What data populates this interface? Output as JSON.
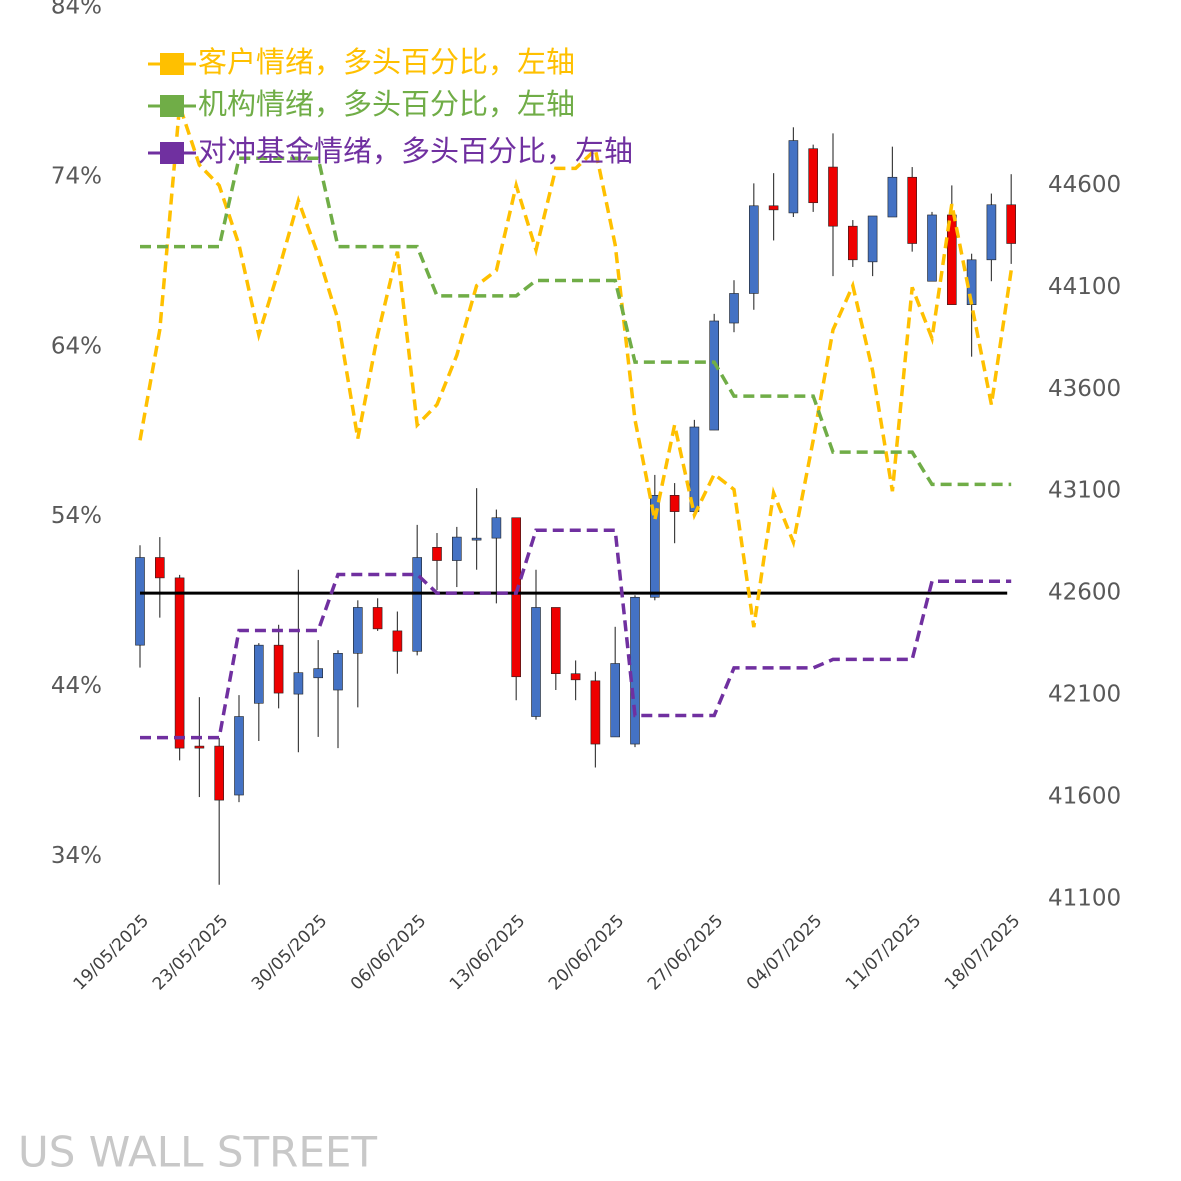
{
  "chart_data": {
    "type": "candlestick",
    "categories": [
      "19/05/2025",
      null,
      null,
      null,
      "23/05/2025",
      null,
      null,
      null,
      null,
      "30/05/2025",
      null,
      null,
      null,
      null,
      "06/06/2025",
      null,
      null,
      null,
      null,
      "13/06/2025",
      null,
      null,
      null,
      null,
      "20/06/2025",
      null,
      null,
      null,
      null,
      "27/06/2025",
      null,
      null,
      null,
      null,
      "04/07/2025",
      null,
      null,
      null,
      null,
      "11/07/2025",
      null,
      null,
      null,
      null,
      "18/07/2025"
    ],
    "ohlc": {
      "open": [
        42345,
        42775,
        42675,
        41850,
        41850,
        41610,
        42060,
        42345,
        42105,
        42185,
        42125,
        42305,
        42530,
        42415,
        42315,
        42825,
        42760,
        42865,
        42870,
        42970,
        41995,
        42530,
        42205,
        42170,
        41895,
        41860,
        42580,
        43080,
        43000,
        43400,
        43925,
        44070,
        44500,
        44465,
        44780,
        44690,
        44400,
        44225,
        44445,
        44640,
        44130,
        44455,
        44015,
        44235,
        44505
      ],
      "high": [
        42835,
        42875,
        42690,
        42090,
        41890,
        42100,
        42355,
        42445,
        42715,
        42370,
        42320,
        42565,
        42575,
        42510,
        42935,
        42895,
        42925,
        43115,
        43010,
        42970,
        42715,
        42530,
        42270,
        42215,
        42435,
        42590,
        43180,
        43140,
        43450,
        43970,
        44135,
        44610,
        44660,
        44885,
        44800,
        44855,
        44430,
        44450,
        44790,
        44690,
        44470,
        44600,
        44265,
        44560,
        44655
      ],
      "low": [
        42235,
        42480,
        41780,
        41600,
        41170,
        41575,
        41875,
        42035,
        41820,
        41895,
        41840,
        42040,
        42415,
        42205,
        42295,
        42615,
        42630,
        42715,
        42550,
        42075,
        41980,
        42125,
        42075,
        41745,
        41895,
        41845,
        42565,
        42845,
        42975,
        43400,
        43880,
        43990,
        44330,
        44445,
        44470,
        44155,
        44200,
        44155,
        44445,
        44275,
        44130,
        44015,
        43760,
        44130,
        44215
      ],
      "close": [
        42775,
        42675,
        41840,
        41840,
        41585,
        41995,
        42345,
        42110,
        42210,
        42230,
        42305,
        42530,
        42425,
        42315,
        42775,
        42760,
        42875,
        42870,
        42970,
        42190,
        42530,
        42205,
        42175,
        41860,
        42255,
        42580,
        43080,
        43000,
        43415,
        43935,
        44070,
        44500,
        44480,
        44820,
        44515,
        44400,
        44235,
        44450,
        44640,
        44315,
        44455,
        44015,
        44235,
        44505,
        44315
      ],
      "axis": "y2",
      "up_color": "#4472c4",
      "down_color": "#ee0000"
    },
    "series": [
      {
        "name": "客户情绪，多头百分比，左轴",
        "color": "#ffc000",
        "values": [
          58.5,
          65.0,
          78.2,
          74.7,
          73.5,
          70.0,
          64.7,
          68.5,
          72.6,
          69.4,
          65.6,
          58.6,
          64.7,
          69.6,
          59.4,
          60.6,
          63.5,
          67.6,
          68.5,
          73.5,
          69.7,
          74.5,
          74.5,
          75.6,
          70.0,
          59.7,
          53.8,
          59.4,
          54.1,
          56.5,
          55.6,
          47.5,
          55.4,
          52.5,
          58.5,
          65.0,
          67.6,
          62.6,
          55.5,
          67.5,
          64.5,
          72.4,
          66.5,
          60.6,
          68.5
        ]
      },
      {
        "name": "机构情绪，多头百分比，左轴",
        "color": "#70ad47",
        "values": [
          69.9,
          69.9,
          69.9,
          69.9,
          69.9,
          75.1,
          75.1,
          75.1,
          75.1,
          75.1,
          69.9,
          69.9,
          69.9,
          69.9,
          69.9,
          67.0,
          67.0,
          67.0,
          67.0,
          67.0,
          67.9,
          67.9,
          67.9,
          67.9,
          67.9,
          63.1,
          63.1,
          63.1,
          63.1,
          63.1,
          61.1,
          61.1,
          61.1,
          61.1,
          61.1,
          57.8,
          57.8,
          57.8,
          57.8,
          57.8,
          55.9,
          55.9,
          55.9,
          55.9,
          55.9
        ]
      },
      {
        "name": "对冲基金情绪，多头百分比，左轴",
        "color": "#7030a0",
        "values": [
          41.0,
          41.0,
          41.0,
          41.0,
          41.0,
          47.3,
          47.3,
          47.3,
          47.3,
          47.3,
          50.6,
          50.6,
          50.6,
          50.6,
          50.6,
          49.5,
          49.5,
          49.5,
          49.5,
          49.5,
          53.2,
          53.2,
          53.2,
          53.2,
          53.2,
          42.3,
          42.3,
          42.3,
          42.3,
          42.3,
          45.1,
          45.1,
          45.1,
          45.1,
          45.1,
          45.6,
          45.6,
          45.6,
          45.6,
          45.6,
          50.2,
          50.2,
          50.2,
          50.2,
          50.2
        ]
      }
    ],
    "hline": {
      "value": 42600,
      "axis": "y2",
      "color": "#000000"
    },
    "ylim": [
      31.5,
      84
    ],
    "yticks": [
      {
        "value": 34,
        "label": "34%"
      },
      {
        "value": 44,
        "label": "44%"
      },
      {
        "value": 54,
        "label": "54%"
      },
      {
        "value": 64,
        "label": "64%"
      },
      {
        "value": 74,
        "label": "74%"
      },
      {
        "value": 84,
        "label": "84%"
      }
    ],
    "y2lim": [
      41100,
      45475
    ],
    "y2ticks": [
      41100,
      41600,
      42100,
      42600,
      43100,
      43600,
      44100,
      44600
    ],
    "legend": "top-left",
    "grid": false
  },
  "watermark": "US WALL STREET"
}
